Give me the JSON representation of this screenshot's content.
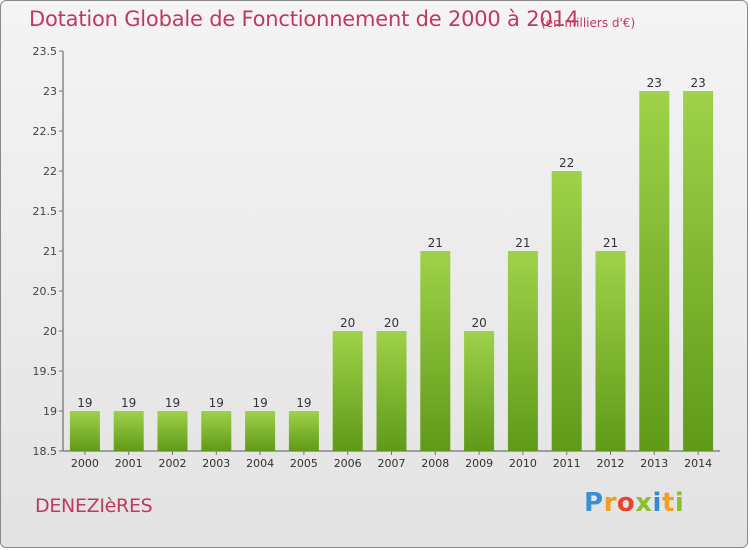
{
  "chart": {
    "title": "Dotation Globale de Fonctionnement de 2000 à 2014",
    "unit": "(en milliers d'€)"
  },
  "footer": {
    "commune": "DENEZIèRES",
    "logo_text": "Proxiti"
  },
  "colors": {
    "title": "#c0395f",
    "bar_top": "#9fd24a",
    "bar_bottom": "#5f9a18",
    "axis": "#555555",
    "grid_tick": "#777777"
  },
  "chart_data": {
    "type": "bar",
    "categories": [
      "2000",
      "2001",
      "2002",
      "2003",
      "2004",
      "2005",
      "2006",
      "2007",
      "2008",
      "2009",
      "2010",
      "2011",
      "2012",
      "2013",
      "2014"
    ],
    "values": [
      19,
      19,
      19,
      19,
      19,
      19,
      20,
      20,
      21,
      20,
      21,
      22,
      21,
      23,
      23
    ],
    "data_labels": [
      "19",
      "19",
      "19",
      "19",
      "19",
      "19",
      "20",
      "20",
      "21",
      "20",
      "21",
      "22",
      "21",
      "23",
      "23"
    ],
    "yticks": [
      18.5,
      19,
      19.5,
      20,
      20.5,
      21,
      21.5,
      22,
      22.5,
      23,
      23.5
    ],
    "ytick_labels": [
      "18.5",
      "19",
      "19.5",
      "20",
      "20.5",
      "21",
      "21.5",
      "22",
      "22.5",
      "23",
      "23.5"
    ],
    "ylim": [
      18.5,
      23.5
    ],
    "title": "Dotation Globale de Fonctionnement de 2000 à 2014",
    "xlabel": "",
    "ylabel": "",
    "grid": false,
    "legend": "none"
  }
}
